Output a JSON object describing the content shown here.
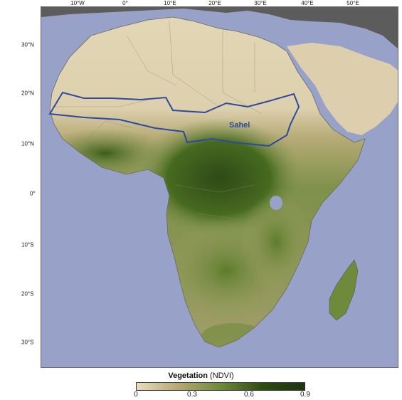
{
  "map": {
    "lon_labels": [
      "10°W",
      "0°",
      "10°E",
      "20°E",
      "30°E",
      "40°E",
      "50°E"
    ],
    "lat_labels": [
      "30°N",
      "20°N",
      "10°N",
      "0°",
      "10°S",
      "20°S",
      "30°S"
    ],
    "region_label": "Sahel",
    "colors": {
      "ocean": "#98a2c8",
      "land_dry": "#dfd2b0",
      "land_green": "#4f7424",
      "land_dense": "#2d4a17",
      "outside_africa": "#5c5c5c",
      "sahel_line": "#2d4aa0"
    }
  },
  "legend": {
    "title_bold": "Vegetation",
    "title_rest": " (NDVI)",
    "ticks": [
      "0",
      "0.3",
      "0.6",
      "0.9"
    ],
    "gradient": [
      "#e8ddc0",
      "#b6a774",
      "#6f8a3a",
      "#2f4a12",
      "#1e3410"
    ]
  }
}
